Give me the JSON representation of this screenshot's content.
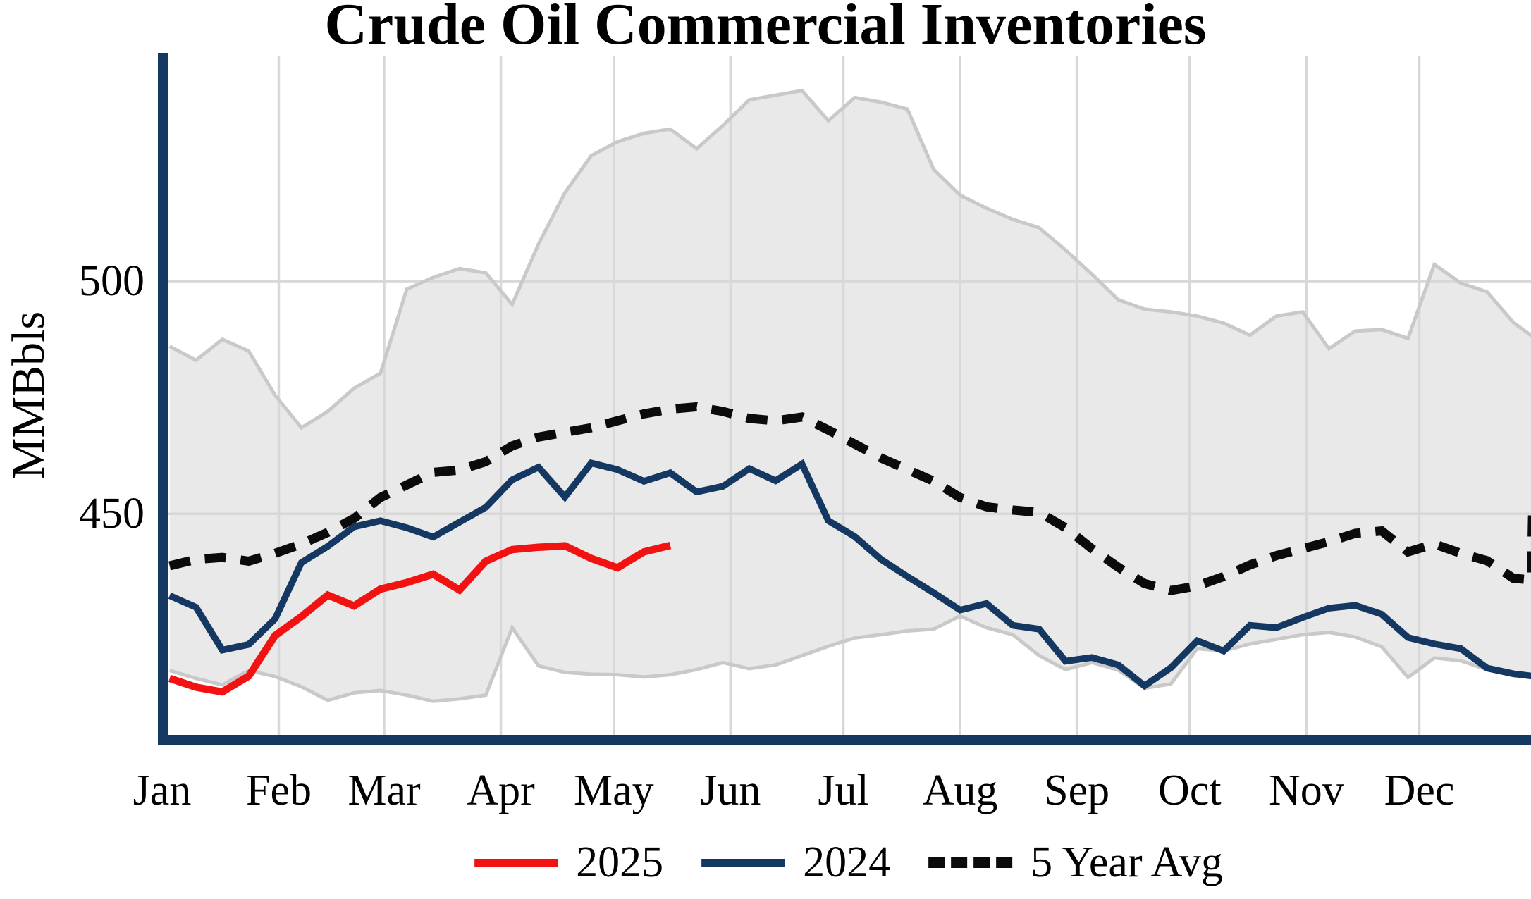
{
  "chart_data": {
    "type": "line",
    "title": "Crude Oil Commercial Inventories",
    "ylabel": "MMBbls",
    "ylim": [
      401.4,
      548.5
    ],
    "grid": {
      "color": "#d8d8d8",
      "horizontal": "at yticks",
      "vertical": "at month starts"
    },
    "axis_color": "#143861",
    "yticks": [
      {
        "label": "450",
        "value": 450
      },
      {
        "label": "500",
        "value": 500
      }
    ],
    "x_axis": {
      "unit": "weekly, Jan-Dec",
      "week0_day_of_year": 2,
      "days_in_year": 365,
      "months": [
        {
          "label": "Jan",
          "day": 0
        },
        {
          "label": "Feb",
          "day": 31
        },
        {
          "label": "Mar",
          "day": 59
        },
        {
          "label": "Apr",
          "day": 90
        },
        {
          "label": "May",
          "day": 120
        },
        {
          "label": "Jun",
          "day": 151
        },
        {
          "label": "Jul",
          "day": 181
        },
        {
          "label": "Aug",
          "day": 212
        },
        {
          "label": "Sep",
          "day": 243
        },
        {
          "label": "Oct",
          "day": 273
        },
        {
          "label": "Nov",
          "day": 304
        },
        {
          "label": "Dec",
          "day": 334
        }
      ]
    },
    "band": {
      "name": "5-year min-max range",
      "fill": "#e9e9e9",
      "stroke": "#c9c9c9",
      "max": [
        486.0,
        483.0,
        487.5,
        485.0,
        475.5,
        468.5,
        472.0,
        477.0,
        480.2,
        498.3,
        500.8,
        502.7,
        501.8,
        495.0,
        508.0,
        519.0,
        527.0,
        530.0,
        531.8,
        532.7,
        528.5,
        533.5,
        539.0,
        540.0,
        541.0,
        534.5,
        539.5,
        538.5,
        537.0,
        524.0,
        518.5,
        515.7,
        513.3,
        511.5,
        506.7,
        501.5,
        496.0,
        494.0,
        493.4,
        492.5,
        491.0,
        488.4,
        492.5,
        493.4,
        485.5,
        489.3,
        489.6,
        487.7,
        503.6,
        499.6,
        497.7,
        491.1,
        487.0
      ],
      "min": [
        416.3,
        414.6,
        413.2,
        416.3,
        415.0,
        412.8,
        409.9,
        411.5,
        412.0,
        411.0,
        409.7,
        410.2,
        411.0,
        425.5,
        417.3,
        415.9,
        415.5,
        415.4,
        414.9,
        415.4,
        416.5,
        418.0,
        416.7,
        417.5,
        419.5,
        421.5,
        423.3,
        424.0,
        424.8,
        425.2,
        428.0,
        425.5,
        424.0,
        419.5,
        416.5,
        418.0,
        416.4,
        412.5,
        413.4,
        421.0,
        420.5,
        422.0,
        423.0,
        424.0,
        424.5,
        423.5,
        421.4,
        414.8,
        419.0,
        418.4,
        416.5,
        415.2,
        415.0
      ]
    },
    "series": [
      {
        "name": "2025",
        "color": "#f31212",
        "dash": false,
        "values": [
          414.6,
          412.7,
          411.7,
          415.1,
          423.8,
          427.9,
          432.5,
          430.2,
          433.8,
          435.2,
          437.0,
          433.6,
          439.8,
          442.3,
          442.8,
          443.1,
          440.4,
          438.4,
          441.8,
          443.2
        ]
      },
      {
        "name": "2024",
        "color": "#143861",
        "dash": false,
        "values": [
          432.4,
          429.9,
          420.7,
          421.9,
          427.4,
          439.5,
          443.0,
          447.2,
          448.5,
          447.0,
          445.0,
          448.2,
          451.4,
          457.3,
          460.0,
          453.6,
          460.9,
          459.5,
          457.0,
          458.8,
          454.7,
          455.9,
          459.7,
          457.1,
          460.7,
          448.5,
          445.1,
          440.2,
          436.5,
          433.0,
          429.3,
          430.7,
          426.0,
          425.2,
          418.3,
          419.1,
          417.5,
          413.0,
          416.9,
          422.7,
          420.5,
          426.0,
          425.5,
          427.7,
          429.7,
          430.3,
          428.4,
          423.4,
          422.0,
          421.0,
          416.8,
          415.6,
          414.9
        ]
      },
      {
        "name": "5 Year Avg",
        "color": "#0b0b0b",
        "dash": true,
        "weeks": [
          0,
          1,
          2,
          3,
          4,
          5,
          6,
          7,
          8,
          9,
          10,
          11,
          12,
          13,
          14,
          15,
          16,
          17,
          18,
          19,
          20,
          21,
          22,
          23,
          24,
          25,
          26,
          27,
          28,
          29,
          30,
          31,
          32,
          33,
          34,
          35,
          36,
          37,
          38,
          39,
          40,
          41,
          42,
          43,
          44,
          45,
          46,
          47,
          48,
          49,
          50,
          51,
          51.68,
          51.73
        ],
        "values": [
          438.8,
          440.2,
          440.6,
          439.8,
          441.5,
          443.5,
          446.0,
          449.0,
          453.5,
          456.2,
          458.9,
          459.4,
          461.2,
          464.6,
          466.5,
          467.5,
          468.5,
          470.0,
          471.5,
          472.5,
          473.0,
          472.0,
          470.5,
          470.0,
          470.8,
          468.0,
          465.0,
          462.0,
          459.5,
          457.0,
          453.5,
          451.5,
          450.8,
          450.3,
          447.0,
          442.5,
          438.5,
          435.0,
          433.5,
          434.5,
          436.5,
          439.0,
          441.0,
          442.5,
          444.0,
          445.8,
          446.3,
          441.8,
          443.5,
          441.5,
          439.9,
          436.1,
          435.8,
          450.4
        ]
      }
    ],
    "legend": {
      "position": "bottom-center"
    }
  }
}
